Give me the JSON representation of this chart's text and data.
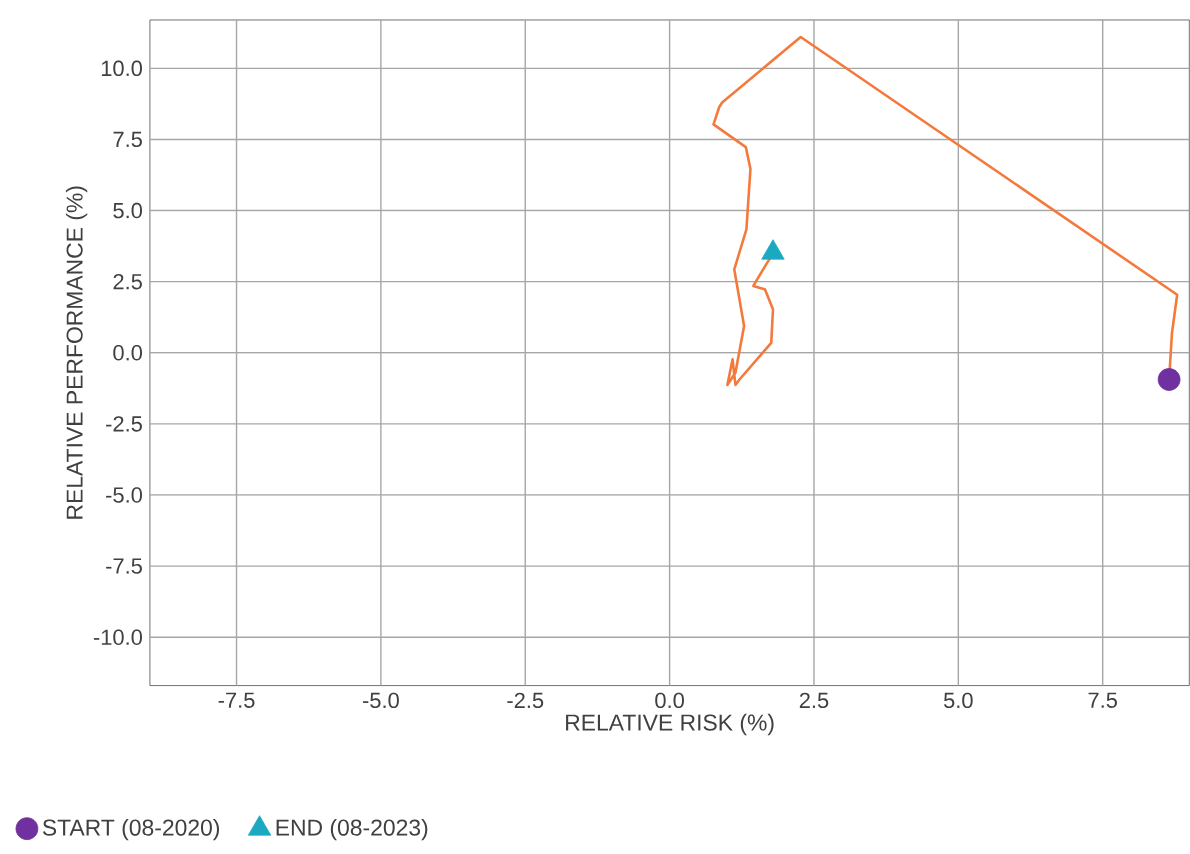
{
  "chart_data": {
    "type": "line",
    "xlabel": "RELATIVE RISK (%)",
    "ylabel": "RELATIVE PERFORMANCE (%)",
    "xlim": [
      -9,
      9
    ],
    "ylim": [
      -11.7,
      11.7
    ],
    "xticks": [
      {
        "value": -7.5,
        "label": "-7.5"
      },
      {
        "value": -5,
        "label": "-5.0"
      },
      {
        "value": -2.5,
        "label": "-2.5"
      },
      {
        "value": 0,
        "label": "0.0"
      },
      {
        "value": 2.5,
        "label": "2.5"
      },
      {
        "value": 5,
        "label": "5.0"
      },
      {
        "value": 7.5,
        "label": "7.5"
      }
    ],
    "yticks": [
      {
        "value": -10,
        "label": "-10.0"
      },
      {
        "value": -7.5,
        "label": "-7.5"
      },
      {
        "value": -5,
        "label": "-5.0"
      },
      {
        "value": -2.5,
        "label": "-2.5"
      },
      {
        "value": 0,
        "label": "0.0"
      },
      {
        "value": 2.5,
        "label": "2.5"
      },
      {
        "value": 5,
        "label": "5.0"
      },
      {
        "value": 7.5,
        "label": "7.5"
      },
      {
        "value": 10,
        "label": "10.0"
      }
    ],
    "grid": true,
    "legend": "bottom",
    "series": [
      {
        "type": "line",
        "color": "#f47a3c",
        "marker": "none",
        "line_style": "solid",
        "x": [
          8.65,
          8.7,
          8.79,
          2.27,
          0.91,
          0.86,
          0.76,
          1.32,
          1.4,
          1.33,
          1.12,
          1.29,
          1.14,
          1.0,
          1.09,
          1.14,
          1.21,
          1.76,
          1.79,
          1.65,
          1.45,
          1.62,
          1.76
        ],
        "values": [
          -0.94,
          0.7,
          2.04,
          11.1,
          8.8,
          8.64,
          8.03,
          7.23,
          6.46,
          4.34,
          2.93,
          0.94,
          -0.7,
          -1.13,
          -0.23,
          -1.13,
          -0.94,
          0.35,
          1.53,
          2.23,
          2.35,
          2.93,
          3.4
        ]
      },
      {
        "type": "scatter",
        "name": "START (08-2020)",
        "color": "#7030a0",
        "marker": "circle",
        "x": [
          8.65
        ],
        "values": [
          -0.94
        ]
      },
      {
        "type": "scatter",
        "name": "END (08-2023)",
        "color": "#1aa9c1",
        "marker": "triangle",
        "x": [
          1.79
        ],
        "values": [
          3.52
        ]
      }
    ]
  }
}
